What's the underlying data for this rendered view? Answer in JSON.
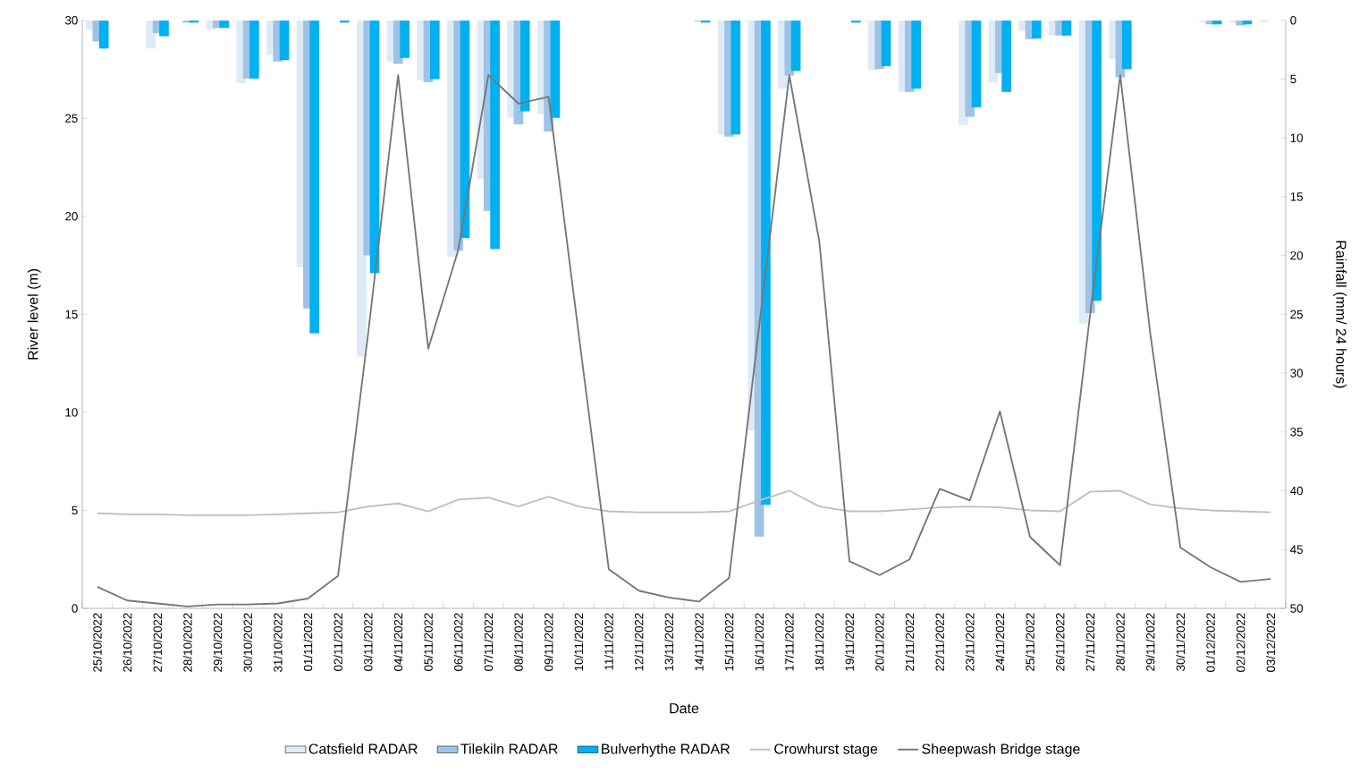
{
  "chart_data": {
    "type": "bar",
    "xlabel": "Date",
    "ylabel": "River level (m)",
    "y2label": "Rainfall (mm/ 24 hours)",
    "categories": [
      "25/10/2022",
      "26/10/2022",
      "27/10/2022",
      "28/10/2022",
      "29/10/2022",
      "30/10/2022",
      "31/10/2022",
      "01/11/2022",
      "02/11/2022",
      "03/11/2022",
      "04/11/2022",
      "05/11/2022",
      "06/11/2022",
      "07/11/2022",
      "08/11/2022",
      "09/11/2022",
      "10/11/2022",
      "11/11/2022",
      "12/11/2022",
      "13/11/2022",
      "14/11/2022",
      "15/11/2022",
      "16/11/2022",
      "17/11/2022",
      "18/11/2022",
      "19/11/2022",
      "20/11/2022",
      "21/11/2022",
      "22/11/2022",
      "23/11/2022",
      "24/11/2022",
      "25/11/2022",
      "26/11/2022",
      "27/11/2022",
      "28/11/2022",
      "29/11/2022",
      "30/11/2022",
      "01/12/2022",
      "02/12/2022",
      "03/12/2022"
    ],
    "ylim": [
      0,
      30
    ],
    "yticks": [
      0,
      5,
      10,
      15,
      20,
      25,
      30
    ],
    "y2lim": [
      50,
      0
    ],
    "y2ticks": [
      0,
      5,
      10,
      15,
      20,
      25,
      30,
      35,
      40,
      45,
      50
    ],
    "legend": "bottom",
    "series": [
      {
        "name": "Catsfield RADAR",
        "axis": "y2",
        "color": "#deebf7",
        "values": [
          0.8,
          null,
          2.4,
          null,
          0.8,
          5.35,
          2.95,
          21.0,
          null,
          28.6,
          3.5,
          5.1,
          20.1,
          13.5,
          8.3,
          7.95,
          null,
          null,
          null,
          null,
          null,
          9.7,
          34.9,
          5.8,
          null,
          null,
          4.25,
          6.1,
          null,
          8.9,
          5.3,
          0.9,
          1.3,
          25.8,
          3.3,
          null,
          null,
          0.15,
          0.15,
          0.15
        ]
      },
      {
        "name": "Tilekiln RADAR",
        "axis": "y2",
        "color": "#9dc3e6",
        "values": [
          1.8,
          null,
          1.1,
          0.2,
          0.65,
          4.95,
          3.5,
          24.5,
          null,
          20.0,
          3.7,
          5.25,
          19.6,
          16.2,
          8.85,
          9.45,
          null,
          null,
          null,
          null,
          0.1,
          9.9,
          43.9,
          4.7,
          null,
          null,
          4.15,
          6.1,
          null,
          8.2,
          4.5,
          1.6,
          1.3,
          24.9,
          4.85,
          null,
          null,
          0.35,
          0.45,
          null
        ]
      },
      {
        "name": "Bulverhythe RADAR",
        "axis": "y2",
        "color": "#00b0f0",
        "values": [
          2.4,
          null,
          1.35,
          0.2,
          0.65,
          4.95,
          3.4,
          26.6,
          0.2,
          21.5,
          3.2,
          5.0,
          18.5,
          19.45,
          7.75,
          8.3,
          null,
          null,
          null,
          null,
          0.2,
          9.7,
          41.2,
          4.3,
          null,
          0.2,
          3.9,
          5.8,
          null,
          7.4,
          6.1,
          1.55,
          1.3,
          23.85,
          4.15,
          null,
          null,
          0.35,
          0.35,
          null
        ]
      },
      {
        "name": "Crowhurst stage",
        "type": "line",
        "axis": "y",
        "color": "#bfbfbf",
        "values": [
          4.85,
          4.8,
          4.8,
          4.75,
          4.75,
          4.75,
          4.8,
          4.85,
          4.9,
          5.2,
          5.35,
          4.95,
          5.55,
          5.65,
          5.2,
          5.7,
          5.2,
          4.95,
          4.9,
          4.9,
          4.9,
          4.95,
          5.5,
          6.0,
          5.2,
          4.95,
          4.95,
          5.05,
          5.15,
          5.2,
          5.15,
          5.0,
          4.95,
          5.95,
          6.0,
          5.3,
          5.1,
          5.0,
          4.95,
          4.9
        ]
      },
      {
        "name": "Sheepwash Bridge stage",
        "type": "line",
        "axis": "y",
        "color": "#767676",
        "values": [
          1.1,
          0.4,
          0.25,
          0.1,
          0.2,
          0.2,
          0.25,
          0.5,
          1.65,
          14,
          27.2,
          13.25,
          18.3,
          27.2,
          25.75,
          26.1,
          14,
          2.0,
          0.9,
          0.55,
          0.35,
          1.55,
          14.4,
          27.2,
          18.7,
          2.4,
          1.7,
          2.5,
          6.1,
          5.5,
          10.05,
          3.65,
          2.2,
          15,
          27.2,
          14,
          3.1,
          2.1,
          1.35,
          1.5
        ]
      }
    ]
  }
}
